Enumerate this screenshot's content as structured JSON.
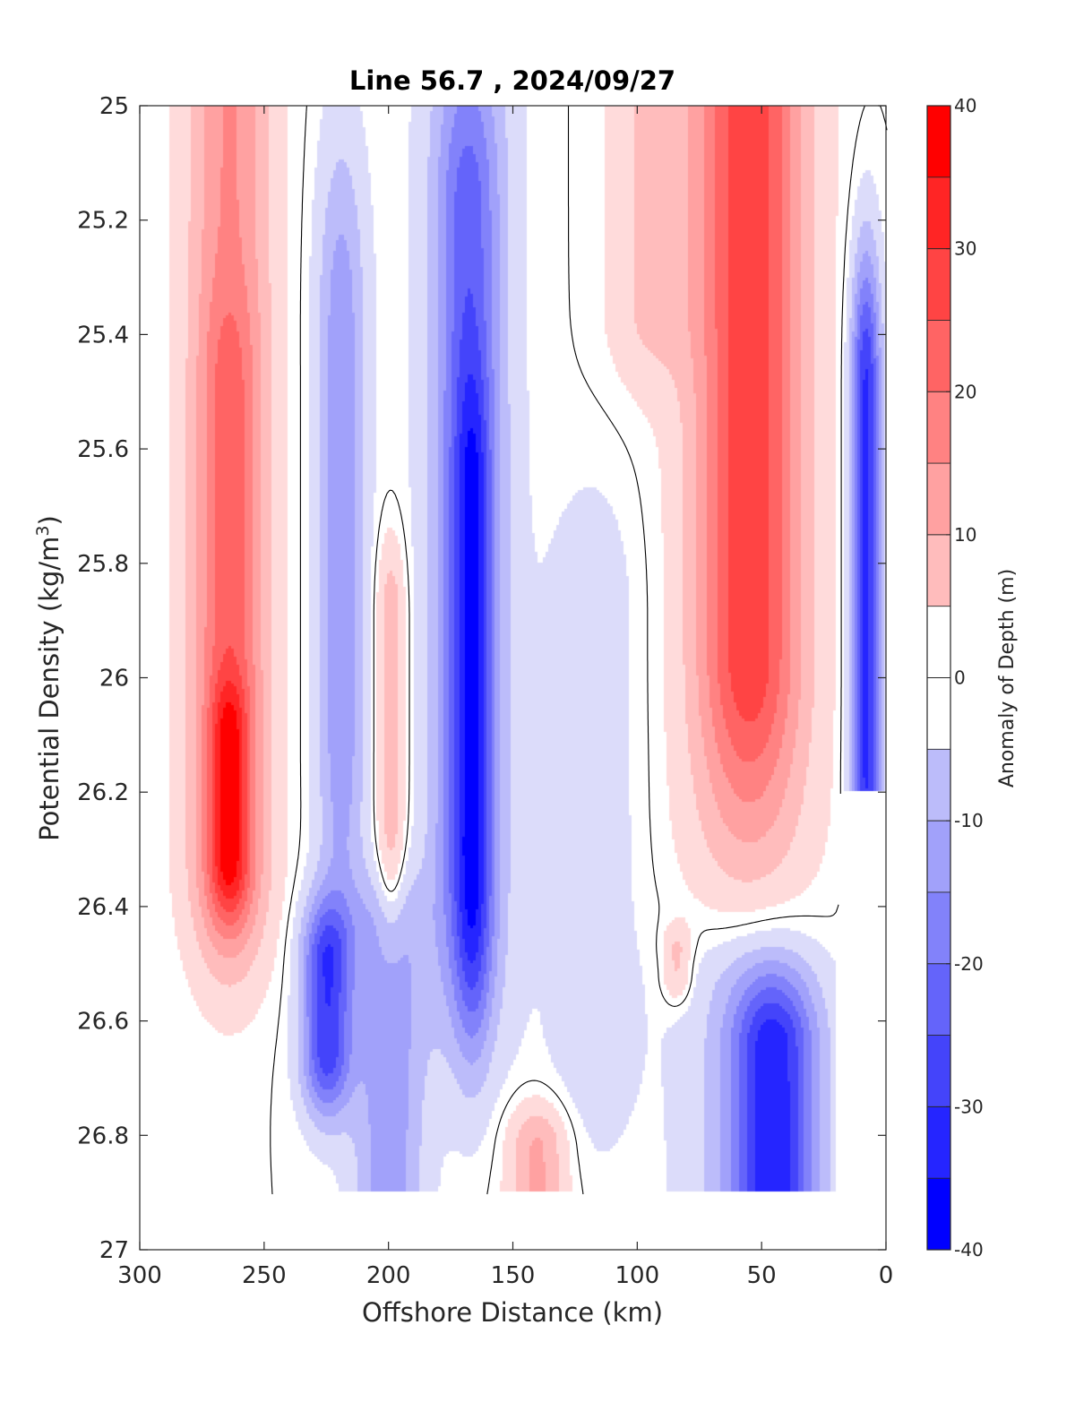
{
  "chart_data": {
    "type": "heatmap",
    "subtype": "filled-contour",
    "title": "Line 56.7 , 2024/09/27",
    "xlabel": "Offshore Distance (km)",
    "ylabel_main": "Potential Density (kg/m",
    "ylabel_sup": "3",
    "ylabel_close": ")",
    "colorbar_label": "Anomaly of Depth (m)",
    "xlim": [
      300,
      0
    ],
    "x_reversed": true,
    "ylim": [
      25,
      27
    ],
    "y_reversed": true,
    "x_ticks": [
      300,
      250,
      200,
      150,
      100,
      50,
      0
    ],
    "x_tick_labels": [
      "300",
      "250",
      "200",
      "150",
      "100",
      "50",
      "0"
    ],
    "y_ticks": [
      25,
      25.2,
      25.4,
      25.6,
      25.8,
      26,
      26.2,
      26.4,
      26.6,
      26.8,
      27
    ],
    "y_tick_labels": [
      "25",
      "25.2",
      "25.4",
      "25.6",
      "25.8",
      "26",
      "26.2",
      "26.4",
      "26.6",
      "26.8",
      "27"
    ],
    "colorbar_ticks": [
      40,
      30,
      20,
      10,
      0,
      -10,
      -20,
      -30,
      -40
    ],
    "colorbar_tick_labels": [
      "40",
      "30",
      "20",
      "10",
      "0",
      "-10",
      "-20",
      "-30",
      "-40"
    ],
    "clim": [
      -40,
      40
    ],
    "contour_step": 5,
    "colors": {
      "40": "#ff0000",
      "35": "#ff2525",
      "30": "#ff4444",
      "25": "#ff6464",
      "20": "#ff8282",
      "15": "#ffa1a1",
      "10": "#ffbcbc",
      "5": "#ffdbdb",
      "0": "#ffffff",
      "-5": "#dcdcfa",
      "-10": "#bcbcfa",
      "-15": "#a1a1fa",
      "-20": "#8282fa",
      "-25": "#6464fa",
      "-30": "#4444fa",
      "-35": "#2525ff",
      "-40": "#0000ff"
    },
    "data_extent": {
      "density_max": 26.9
    },
    "features": [
      {
        "name": "offshore positive anomaly",
        "x_center": 262,
        "x_halfwidth": 33,
        "y_top": 25.0,
        "y_bottom": 26.6,
        "peak": 40,
        "peak_at": [
          264,
          26.24
        ]
      },
      {
        "name": "negative anomaly",
        "x_center": 212,
        "x_halfwidth": 18,
        "y_top": 25.0,
        "y_bottom": 26.9,
        "peak": -20,
        "peak_at": [
          220,
          25.8
        ]
      },
      {
        "name": "deep negative anomaly",
        "x_center": 215,
        "x_halfwidth": 35,
        "y_top": 26.3,
        "y_bottom": 26.9,
        "peak": -35,
        "peak_at": [
          225,
          26.55
        ]
      },
      {
        "name": "weak positive pocket",
        "x_center": 199,
        "x_halfwidth": 5,
        "y_top": 26.25,
        "y_bottom": 26.35,
        "peak": 10,
        "peak_at": [
          199,
          26.29
        ]
      },
      {
        "name": "central negative anomaly",
        "x_center": 167,
        "x_halfwidth": 30,
        "y_top": 25.0,
        "y_bottom": 26.8,
        "peak": -35,
        "peak_at": [
          166,
          26.05
        ]
      },
      {
        "name": "deep positive pocket",
        "x_center": 140,
        "x_halfwidth": 22,
        "y_top": 26.7,
        "y_bottom": 26.9,
        "peak": 15,
        "peak_at": [
          142,
          26.88
        ]
      },
      {
        "name": "coastal positive anomaly",
        "x_center": 52,
        "x_halfwidth": 45,
        "y_top": 25.0,
        "y_bottom": 26.35,
        "peak": 25,
        "peak_at": [
          50,
          25.6
        ]
      },
      {
        "name": "small positive pocket",
        "x_center": 84,
        "x_halfwidth": 9,
        "y_top": 26.45,
        "y_bottom": 26.55,
        "peak": 10,
        "peak_at": [
          84,
          26.5
        ]
      },
      {
        "name": "nearshore deep negative anomaly",
        "x_center": 52,
        "x_halfwidth": 35,
        "y_top": 26.4,
        "y_bottom": 26.9,
        "peak": -30,
        "peak_at": [
          45,
          26.75
        ]
      },
      {
        "name": "nearshore negative edge",
        "x_center": 8,
        "x_halfwidth": 10,
        "y_top": 25.3,
        "y_bottom": 26.2,
        "peak": -35,
        "peak_at": [
          10,
          26.1
        ]
      }
    ],
    "grid": false,
    "colorbar_position": "right"
  }
}
